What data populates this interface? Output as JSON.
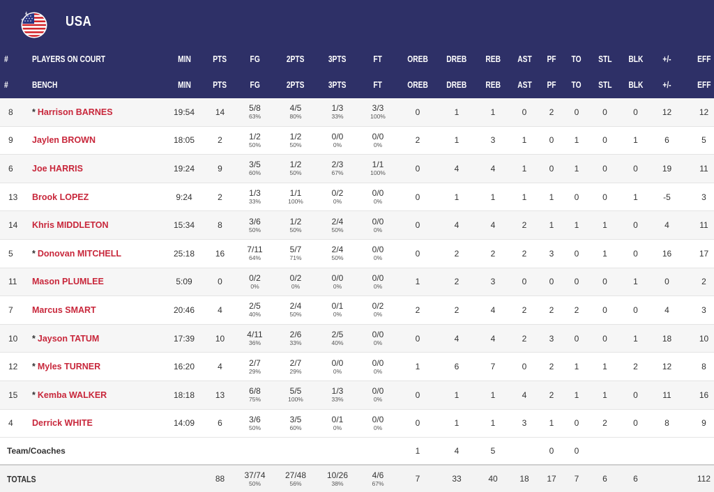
{
  "team": {
    "name": "USA",
    "flag_icon": "usa-flag-icon"
  },
  "colors": {
    "header_bg": "#2e3067",
    "player_name": "#c8273b"
  },
  "headers": {
    "on_court": [
      "#",
      "PLAYERS ON COURT",
      "MIN",
      "PTS",
      "FG",
      "2PTS",
      "3PTS",
      "FT",
      "OREB",
      "DREB",
      "REB",
      "AST",
      "PF",
      "TO",
      "STL",
      "BLK",
      "+/-",
      "EFF"
    ],
    "bench": [
      "#",
      "BENCH",
      "MIN",
      "PTS",
      "FG",
      "2PTS",
      "3PTS",
      "FT",
      "OREB",
      "DREB",
      "REB",
      "AST",
      "PF",
      "TO",
      "STL",
      "BLK",
      "+/-",
      "EFF"
    ]
  },
  "players": [
    {
      "num": "8",
      "star": true,
      "name": "Harrison BARNES",
      "min": "19:54",
      "pts": "14",
      "fg": "5/8",
      "fg_pct": "63%",
      "p2": "4/5",
      "p2_pct": "80%",
      "p3": "1/3",
      "p3_pct": "33%",
      "ft": "3/3",
      "ft_pct": "100%",
      "oreb": "0",
      "dreb": "1",
      "reb": "1",
      "ast": "0",
      "pf": "2",
      "to": "0",
      "stl": "0",
      "blk": "0",
      "pm": "12",
      "eff": "12"
    },
    {
      "num": "9",
      "star": false,
      "name": "Jaylen BROWN",
      "min": "18:05",
      "pts": "2",
      "fg": "1/2",
      "fg_pct": "50%",
      "p2": "1/2",
      "p2_pct": "50%",
      "p3": "0/0",
      "p3_pct": "0%",
      "ft": "0/0",
      "ft_pct": "0%",
      "oreb": "2",
      "dreb": "1",
      "reb": "3",
      "ast": "1",
      "pf": "0",
      "to": "1",
      "stl": "0",
      "blk": "1",
      "pm": "6",
      "eff": "5"
    },
    {
      "num": "6",
      "star": false,
      "name": "Joe HARRIS",
      "min": "19:24",
      "pts": "9",
      "fg": "3/5",
      "fg_pct": "60%",
      "p2": "1/2",
      "p2_pct": "50%",
      "p3": "2/3",
      "p3_pct": "67%",
      "ft": "1/1",
      "ft_pct": "100%",
      "oreb": "0",
      "dreb": "4",
      "reb": "4",
      "ast": "1",
      "pf": "0",
      "to": "1",
      "stl": "0",
      "blk": "0",
      "pm": "19",
      "eff": "11"
    },
    {
      "num": "13",
      "star": false,
      "name": "Brook LOPEZ",
      "min": "9:24",
      "pts": "2",
      "fg": "1/3",
      "fg_pct": "33%",
      "p2": "1/1",
      "p2_pct": "100%",
      "p3": "0/2",
      "p3_pct": "0%",
      "ft": "0/0",
      "ft_pct": "0%",
      "oreb": "0",
      "dreb": "1",
      "reb": "1",
      "ast": "1",
      "pf": "1",
      "to": "0",
      "stl": "0",
      "blk": "1",
      "pm": "-5",
      "eff": "3"
    },
    {
      "num": "14",
      "star": false,
      "name": "Khris MIDDLETON",
      "min": "15:34",
      "pts": "8",
      "fg": "3/6",
      "fg_pct": "50%",
      "p2": "1/2",
      "p2_pct": "50%",
      "p3": "2/4",
      "p3_pct": "50%",
      "ft": "0/0",
      "ft_pct": "0%",
      "oreb": "0",
      "dreb": "4",
      "reb": "4",
      "ast": "2",
      "pf": "1",
      "to": "1",
      "stl": "1",
      "blk": "0",
      "pm": "4",
      "eff": "11"
    },
    {
      "num": "5",
      "star": true,
      "name": "Donovan MITCHELL",
      "min": "25:18",
      "pts": "16",
      "fg": "7/11",
      "fg_pct": "64%",
      "p2": "5/7",
      "p2_pct": "71%",
      "p3": "2/4",
      "p3_pct": "50%",
      "ft": "0/0",
      "ft_pct": "0%",
      "oreb": "0",
      "dreb": "2",
      "reb": "2",
      "ast": "2",
      "pf": "3",
      "to": "0",
      "stl": "1",
      "blk": "0",
      "pm": "16",
      "eff": "17"
    },
    {
      "num": "11",
      "star": false,
      "name": "Mason PLUMLEE",
      "min": "5:09",
      "pts": "0",
      "fg": "0/2",
      "fg_pct": "0%",
      "p2": "0/2",
      "p2_pct": "0%",
      "p3": "0/0",
      "p3_pct": "0%",
      "ft": "0/0",
      "ft_pct": "0%",
      "oreb": "1",
      "dreb": "2",
      "reb": "3",
      "ast": "0",
      "pf": "0",
      "to": "0",
      "stl": "0",
      "blk": "1",
      "pm": "0",
      "eff": "2"
    },
    {
      "num": "7",
      "star": false,
      "name": "Marcus SMART",
      "min": "20:46",
      "pts": "4",
      "fg": "2/5",
      "fg_pct": "40%",
      "p2": "2/4",
      "p2_pct": "50%",
      "p3": "0/1",
      "p3_pct": "0%",
      "ft": "0/2",
      "ft_pct": "0%",
      "oreb": "2",
      "dreb": "2",
      "reb": "4",
      "ast": "2",
      "pf": "2",
      "to": "2",
      "stl": "0",
      "blk": "0",
      "pm": "4",
      "eff": "3"
    },
    {
      "num": "10",
      "star": true,
      "name": "Jayson TATUM",
      "min": "17:39",
      "pts": "10",
      "fg": "4/11",
      "fg_pct": "36%",
      "p2": "2/6",
      "p2_pct": "33%",
      "p3": "2/5",
      "p3_pct": "40%",
      "ft": "0/0",
      "ft_pct": "0%",
      "oreb": "0",
      "dreb": "4",
      "reb": "4",
      "ast": "2",
      "pf": "3",
      "to": "0",
      "stl": "0",
      "blk": "1",
      "pm": "18",
      "eff": "10"
    },
    {
      "num": "12",
      "star": true,
      "name": "Myles TURNER",
      "min": "16:20",
      "pts": "4",
      "fg": "2/7",
      "fg_pct": "29%",
      "p2": "2/7",
      "p2_pct": "29%",
      "p3": "0/0",
      "p3_pct": "0%",
      "ft": "0/0",
      "ft_pct": "0%",
      "oreb": "1",
      "dreb": "6",
      "reb": "7",
      "ast": "0",
      "pf": "2",
      "to": "1",
      "stl": "1",
      "blk": "2",
      "pm": "12",
      "eff": "8"
    },
    {
      "num": "15",
      "star": true,
      "name": "Kemba WALKER",
      "min": "18:18",
      "pts": "13",
      "fg": "6/8",
      "fg_pct": "75%",
      "p2": "5/5",
      "p2_pct": "100%",
      "p3": "1/3",
      "p3_pct": "33%",
      "ft": "0/0",
      "ft_pct": "0%",
      "oreb": "0",
      "dreb": "1",
      "reb": "1",
      "ast": "4",
      "pf": "2",
      "to": "1",
      "stl": "1",
      "blk": "0",
      "pm": "11",
      "eff": "16"
    },
    {
      "num": "4",
      "star": false,
      "name": "Derrick WHITE",
      "min": "14:09",
      "pts": "6",
      "fg": "3/6",
      "fg_pct": "50%",
      "p2": "3/5",
      "p2_pct": "60%",
      "p3": "0/1",
      "p3_pct": "0%",
      "ft": "0/0",
      "ft_pct": "0%",
      "oreb": "0",
      "dreb": "1",
      "reb": "1",
      "ast": "3",
      "pf": "1",
      "to": "0",
      "stl": "2",
      "blk": "0",
      "pm": "8",
      "eff": "9"
    }
  ],
  "team_coaches": {
    "label": "Team/Coaches",
    "oreb": "1",
    "dreb": "4",
    "reb": "5",
    "pf": "0",
    "to": "0"
  },
  "totals": {
    "label": "TOTALS",
    "pts": "88",
    "fg": "37/74",
    "fg_pct": "50%",
    "p2": "27/48",
    "p2_pct": "56%",
    "p3": "10/26",
    "p3_pct": "38%",
    "ft": "4/6",
    "ft_pct": "67%",
    "oreb": "7",
    "dreb": "33",
    "reb": "40",
    "ast": "18",
    "pf": "17",
    "to": "7",
    "stl": "6",
    "blk": "6",
    "eff": "112"
  }
}
